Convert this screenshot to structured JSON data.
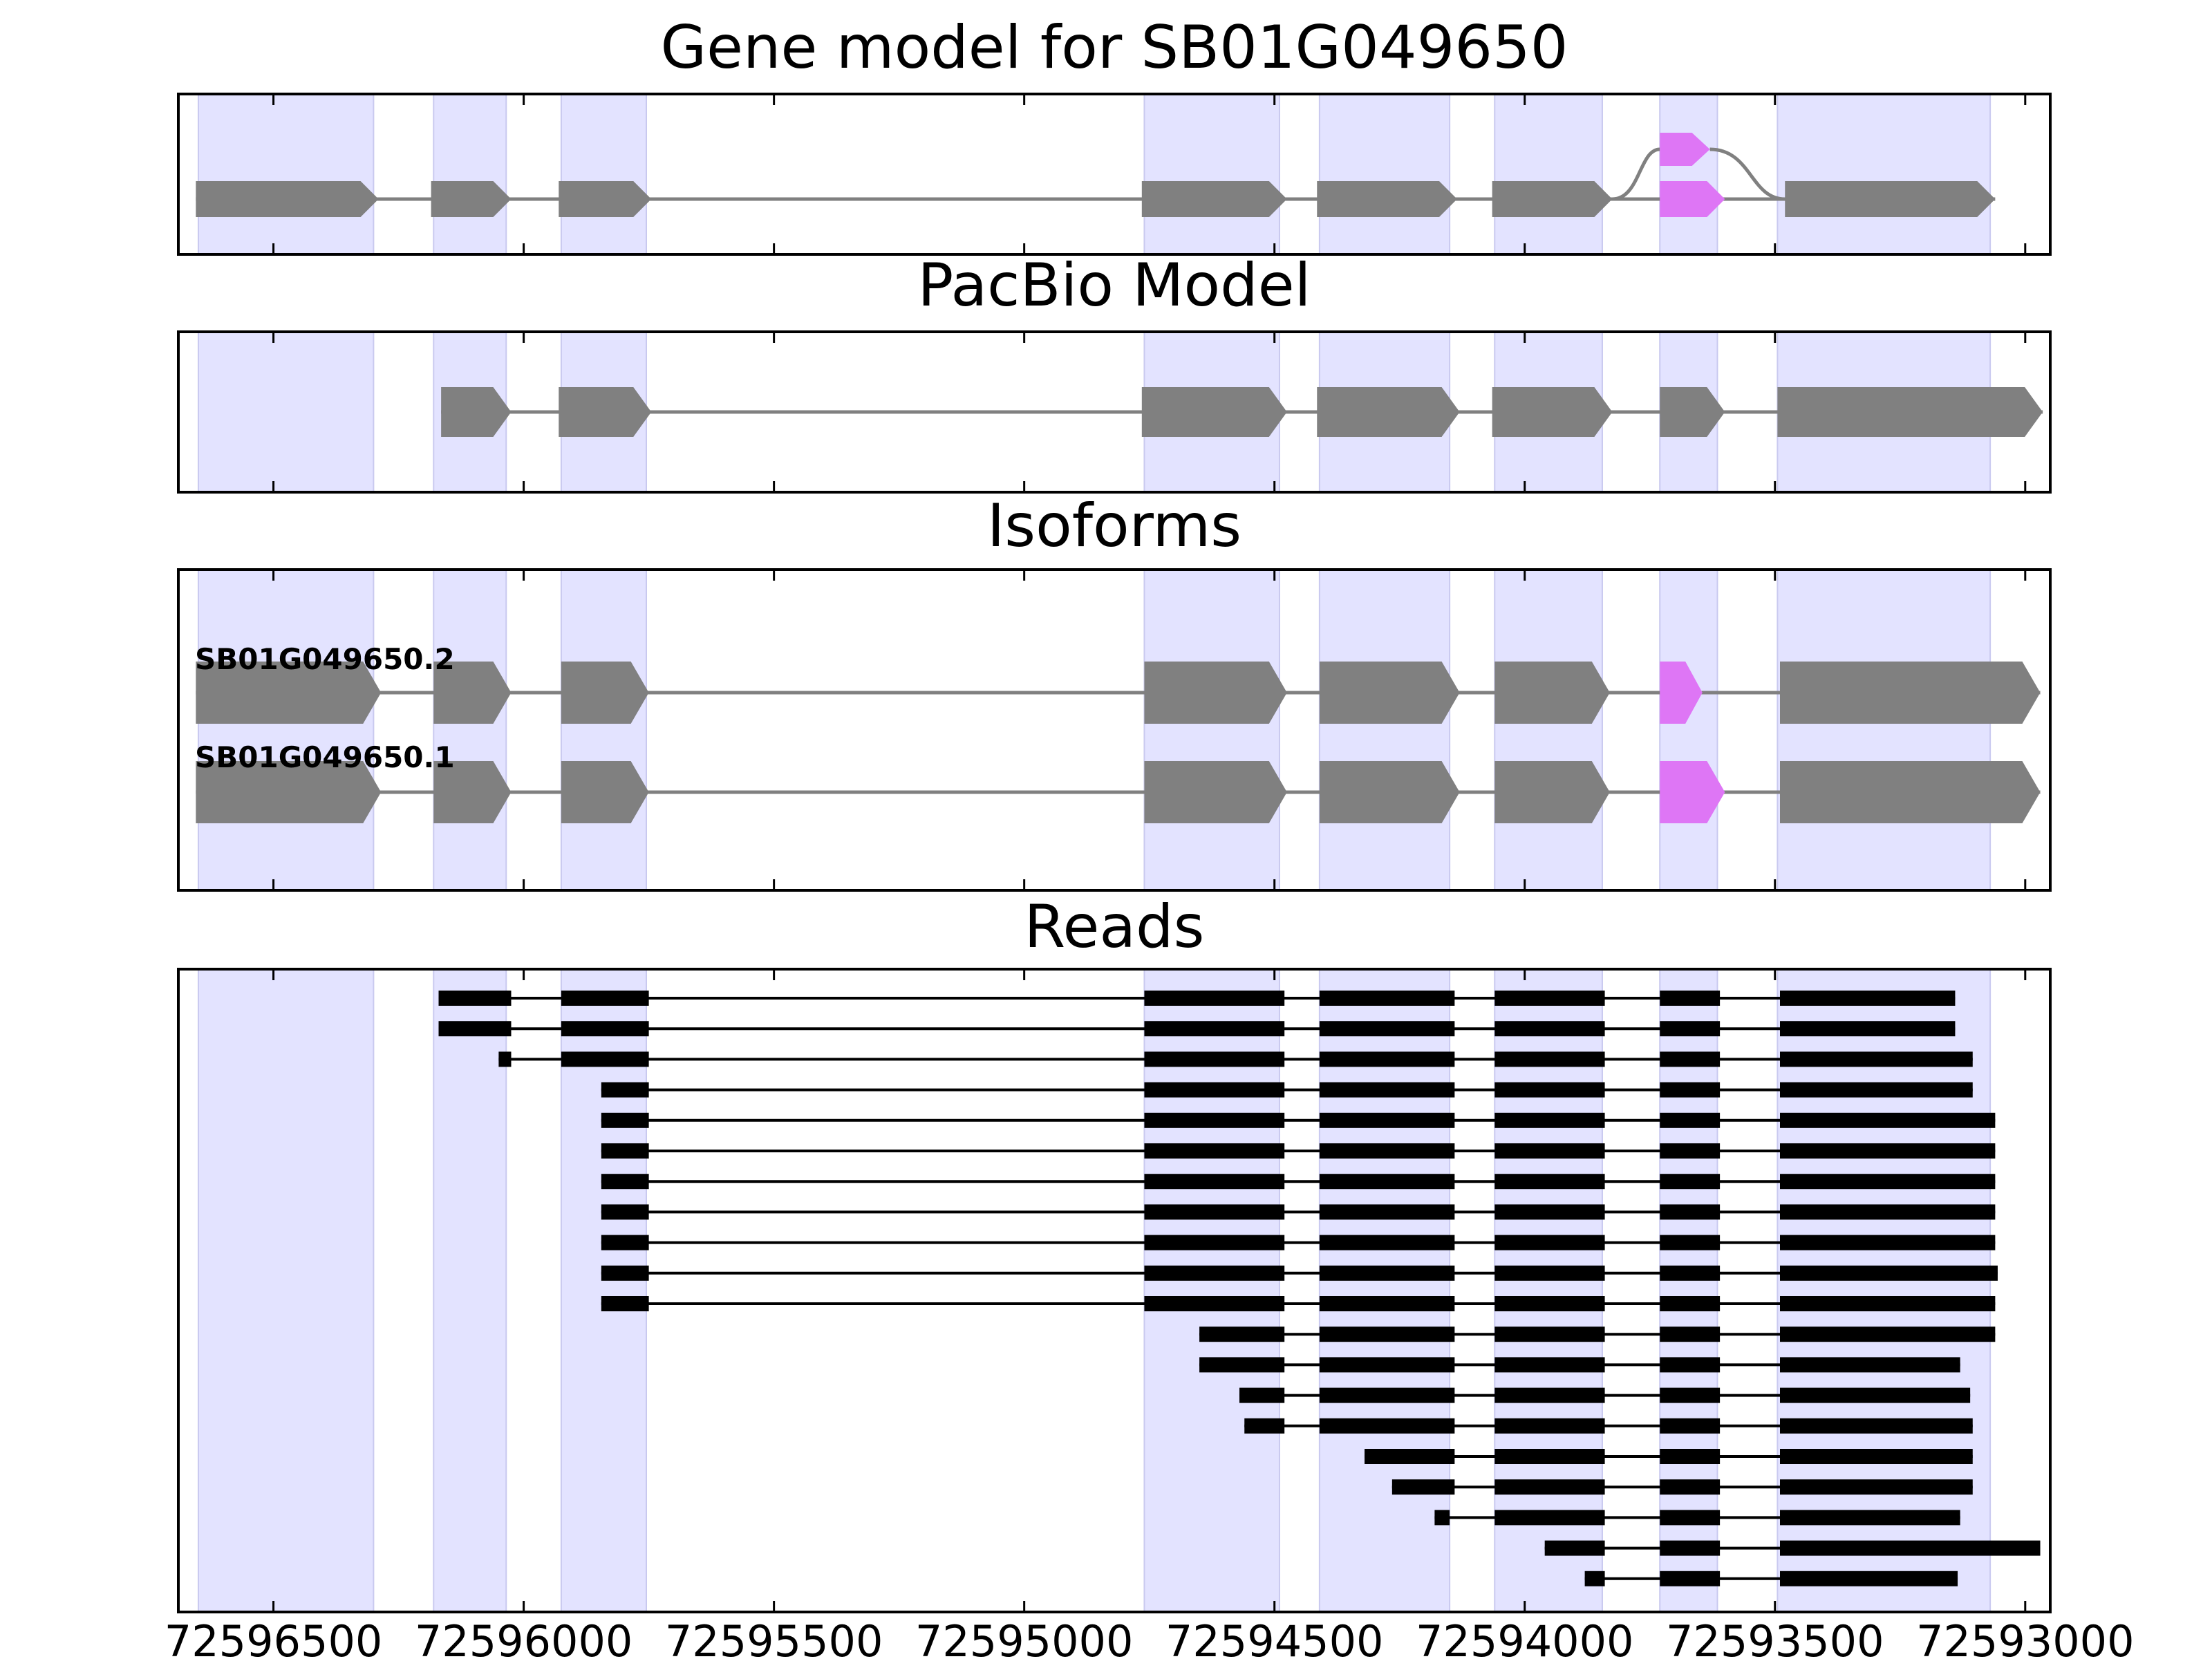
{
  "chart_data": {
    "type": "gene-track",
    "xaxis": {
      "direction": "descending",
      "xlim": [
        72596690,
        72592950
      ],
      "tick_values": [
        72596500,
        72596000,
        72595500,
        72595000,
        72594500,
        72594000,
        72593500,
        72593000
      ],
      "tick_labels": [
        "72596500",
        "72596000",
        "72595500",
        "72595000",
        "72594500",
        "72594000",
        "72593500",
        "72593000"
      ]
    },
    "colors": {
      "background": "#ffffff",
      "exon_band": "#e3e3ff",
      "feature": "#808080",
      "alt_exon": "#de76f5",
      "intron": "#808080",
      "read": "#000000",
      "frame": "#000000"
    },
    "exon_bands": [
      [
        72596650,
        72596300
      ],
      [
        72596180,
        72596035
      ],
      [
        72595925,
        72595755
      ],
      [
        72594760,
        72594490
      ],
      [
        72594410,
        72594150
      ],
      [
        72594060,
        72593845
      ],
      [
        72593730,
        72593615
      ],
      [
        72593495,
        72593070
      ]
    ],
    "panels": [
      {
        "id": "gene-model",
        "title": "Gene model for SB01G049650",
        "rows": [
          {
            "label": "",
            "exons": [
              {
                "start": 72596655,
                "end": 72596290
              },
              {
                "start": 72596185,
                "end": 72596025
              },
              {
                "start": 72595930,
                "end": 72595745
              },
              {
                "start": 72594765,
                "end": 72594475
              },
              {
                "start": 72594415,
                "end": 72594135
              },
              {
                "start": 72594065,
                "end": 72593825
              },
              {
                "start": 72593480,
                "end": 72593060
              }
            ]
          }
        ],
        "alt_splice": {
          "upper": {
            "start": 72593730,
            "end": 72593630,
            "color": "alt_exon"
          },
          "lower": {
            "start": 72593730,
            "end": 72593600,
            "color": "alt_exon"
          }
        }
      },
      {
        "id": "pacbio-model",
        "title": "PacBio Model",
        "rows": [
          {
            "label": "",
            "exons": [
              {
                "start": 72596165,
                "end": 72596025
              },
              {
                "start": 72595930,
                "end": 72595745
              },
              {
                "start": 72594765,
                "end": 72594475
              },
              {
                "start": 72594415,
                "end": 72594130
              },
              {
                "start": 72594065,
                "end": 72593825
              },
              {
                "start": 72593730,
                "end": 72593600
              },
              {
                "start": 72593495,
                "end": 72592965
              }
            ]
          }
        ]
      },
      {
        "id": "isoforms",
        "title": "Isoforms",
        "rows": [
          {
            "label": "SB01G049650.2",
            "exons": [
              {
                "start": 72596655,
                "end": 72596285
              },
              {
                "start": 72596180,
                "end": 72596025
              },
              {
                "start": 72595925,
                "end": 72595750
              },
              {
                "start": 72594760,
                "end": 72594475
              },
              {
                "start": 72594410,
                "end": 72594130
              },
              {
                "start": 72594060,
                "end": 72593830
              },
              {
                "start": 72593730,
                "end": 72593645,
                "alt": true
              },
              {
                "start": 72593490,
                "end": 72592970
              }
            ]
          },
          {
            "label": "SB01G049650.1",
            "exons": [
              {
                "start": 72596655,
                "end": 72596285
              },
              {
                "start": 72596180,
                "end": 72596025
              },
              {
                "start": 72595925,
                "end": 72595750
              },
              {
                "start": 72594760,
                "end": 72594475
              },
              {
                "start": 72594410,
                "end": 72594130
              },
              {
                "start": 72594060,
                "end": 72593830
              },
              {
                "start": 72593730,
                "end": 72593600,
                "alt": true
              },
              {
                "start": 72593490,
                "end": 72592970
              }
            ]
          }
        ]
      }
    ],
    "reads_panel": {
      "title": "Reads",
      "reads": [
        [
          [
            72596170,
            72596025
          ],
          [
            72595925,
            72595750
          ],
          [
            72594760,
            72594480
          ],
          [
            72594410,
            72594140
          ],
          [
            72594060,
            72593840
          ],
          [
            72593730,
            72593610
          ],
          [
            72593490,
            72593140
          ]
        ],
        [
          [
            72596170,
            72596025
          ],
          [
            72595925,
            72595750
          ],
          [
            72594760,
            72594480
          ],
          [
            72594410,
            72594140
          ],
          [
            72594060,
            72593840
          ],
          [
            72593730,
            72593610
          ],
          [
            72593490,
            72593140
          ]
        ],
        [
          [
            72596050,
            72596025
          ],
          [
            72595925,
            72595750
          ],
          [
            72594760,
            72594480
          ],
          [
            72594410,
            72594140
          ],
          [
            72594060,
            72593840
          ],
          [
            72593730,
            72593610
          ],
          [
            72593490,
            72593105
          ]
        ],
        [
          [
            72595845,
            72595750
          ],
          [
            72594760,
            72594480
          ],
          [
            72594410,
            72594140
          ],
          [
            72594060,
            72593840
          ],
          [
            72593730,
            72593610
          ],
          [
            72593490,
            72593105
          ]
        ],
        [
          [
            72595845,
            72595750
          ],
          [
            72594760,
            72594480
          ],
          [
            72594410,
            72594140
          ],
          [
            72594060,
            72593840
          ],
          [
            72593730,
            72593610
          ],
          [
            72593490,
            72593060
          ]
        ],
        [
          [
            72595845,
            72595750
          ],
          [
            72594760,
            72594480
          ],
          [
            72594410,
            72594140
          ],
          [
            72594060,
            72593840
          ],
          [
            72593730,
            72593610
          ],
          [
            72593490,
            72593060
          ]
        ],
        [
          [
            72595845,
            72595750
          ],
          [
            72594760,
            72594480
          ],
          [
            72594410,
            72594140
          ],
          [
            72594060,
            72593840
          ],
          [
            72593730,
            72593610
          ],
          [
            72593490,
            72593060
          ]
        ],
        [
          [
            72595845,
            72595750
          ],
          [
            72594760,
            72594480
          ],
          [
            72594410,
            72594140
          ],
          [
            72594060,
            72593840
          ],
          [
            72593730,
            72593610
          ],
          [
            72593490,
            72593060
          ]
        ],
        [
          [
            72595845,
            72595750
          ],
          [
            72594760,
            72594480
          ],
          [
            72594410,
            72594140
          ],
          [
            72594060,
            72593840
          ],
          [
            72593730,
            72593610
          ],
          [
            72593490,
            72593060
          ]
        ],
        [
          [
            72595845,
            72595750
          ],
          [
            72594760,
            72594480
          ],
          [
            72594410,
            72594140
          ],
          [
            72594060,
            72593840
          ],
          [
            72593730,
            72593610
          ],
          [
            72593490,
            72593055
          ]
        ],
        [
          [
            72595845,
            72595750
          ],
          [
            72594760,
            72594480
          ],
          [
            72594410,
            72594140
          ],
          [
            72594060,
            72593840
          ],
          [
            72593730,
            72593610
          ],
          [
            72593490,
            72593060
          ]
        ],
        [
          [
            72594650,
            72594480
          ],
          [
            72594410,
            72594140
          ],
          [
            72594060,
            72593840
          ],
          [
            72593730,
            72593610
          ],
          [
            72593490,
            72593060
          ]
        ],
        [
          [
            72594650,
            72594480
          ],
          [
            72594410,
            72594140
          ],
          [
            72594060,
            72593840
          ],
          [
            72593730,
            72593610
          ],
          [
            72593490,
            72593130
          ]
        ],
        [
          [
            72594570,
            72594480
          ],
          [
            72594410,
            72594140
          ],
          [
            72594060,
            72593840
          ],
          [
            72593730,
            72593610
          ],
          [
            72593490,
            72593110
          ]
        ],
        [
          [
            72594560,
            72594480
          ],
          [
            72594410,
            72594140
          ],
          [
            72594060,
            72593840
          ],
          [
            72593730,
            72593610
          ],
          [
            72593490,
            72593105
          ]
        ],
        [
          [
            72594320,
            72594140
          ],
          [
            72594060,
            72593840
          ],
          [
            72593730,
            72593610
          ],
          [
            72593490,
            72593105
          ]
        ],
        [
          [
            72594265,
            72594140
          ],
          [
            72594060,
            72593840
          ],
          [
            72593730,
            72593610
          ],
          [
            72593490,
            72593105
          ]
        ],
        [
          [
            72594180,
            72594150
          ],
          [
            72594060,
            72593840
          ],
          [
            72593730,
            72593610
          ],
          [
            72593490,
            72593130
          ]
        ],
        [
          [
            72593960,
            72593840
          ],
          [
            72593730,
            72593610
          ],
          [
            72593490,
            72592970
          ]
        ],
        [
          [
            72593880,
            72593840
          ],
          [
            72593730,
            72593610
          ],
          [
            72593490,
            72593135
          ]
        ]
      ]
    }
  }
}
